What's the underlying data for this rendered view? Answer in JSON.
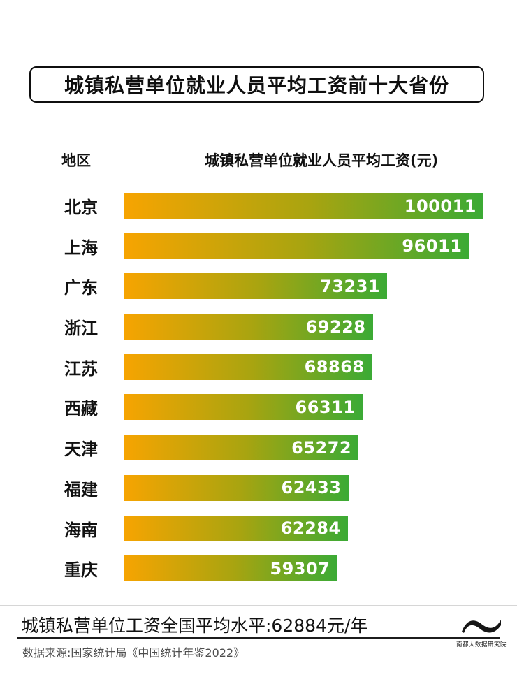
{
  "title": "城镇私营单位就业人员平均工资前十大省份",
  "table_header": {
    "region": "地区",
    "wage": "城镇私营单位就业人员平均工资(元)"
  },
  "chart_data": {
    "type": "bar",
    "orientation": "horizontal",
    "title": "城镇私营单位就业人员平均工资前十大省份",
    "categories": [
      "北京",
      "上海",
      "广东",
      "浙江",
      "江苏",
      "西藏",
      "天津",
      "福建",
      "海南",
      "重庆"
    ],
    "values": [
      100011,
      96011,
      73231,
      69228,
      68868,
      66311,
      65272,
      62433,
      62284,
      59307
    ],
    "value_labels": [
      "100011",
      "96011",
      "73231",
      "69228",
      "68868",
      "66311",
      "65272",
      "62433",
      "62284",
      "59307"
    ],
    "xlabel": "城镇私营单位就业人员平均工资(元)",
    "ylabel": "地区",
    "xlim": [
      0,
      100011
    ],
    "grid": false,
    "legend": false,
    "bar_colors": {
      "start": "#f7a401",
      "mid": "#a8a410",
      "end": "#3baa35"
    },
    "value_label_color": "#ffffff"
  },
  "footer": {
    "average_note": "城镇私营单位工资全国平均水平:62884元/年",
    "source": "数据来源:国家统计局《中国统计年鉴2022》",
    "logo_text": "南都大数据研究院"
  }
}
